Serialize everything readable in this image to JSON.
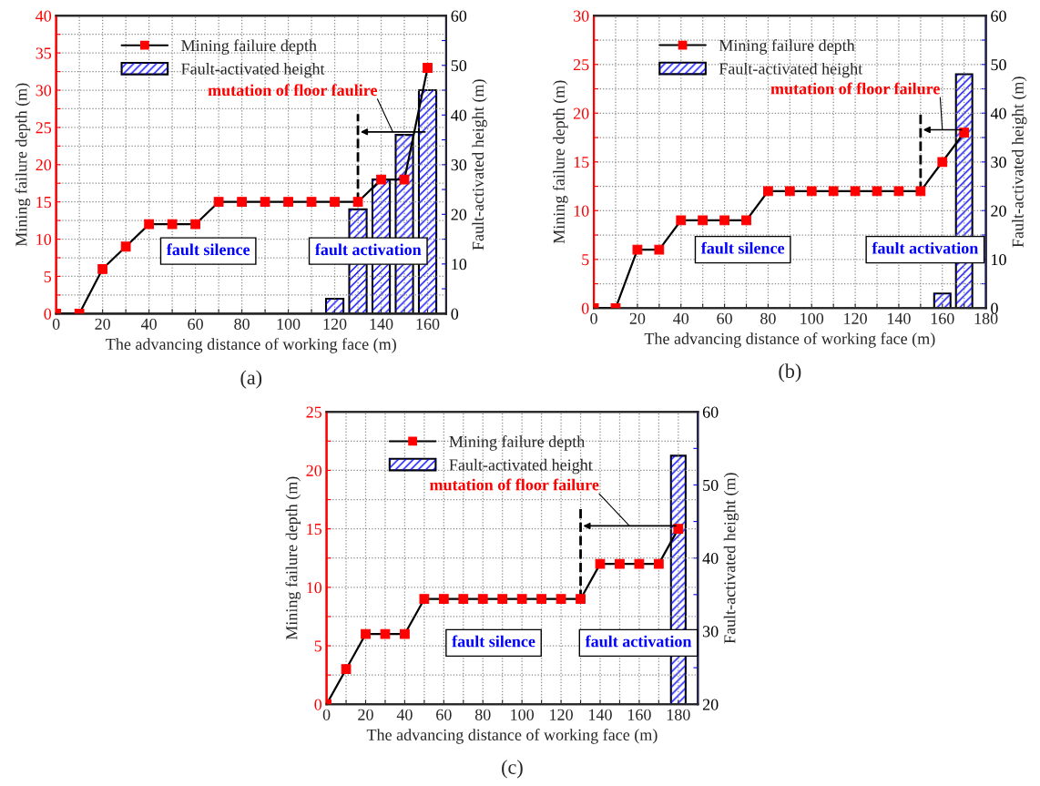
{
  "chart_data": [
    {
      "type": "line",
      "xlabel": "The advancing distance of working face (m)",
      "ylabel": "Mining failure depth (m)",
      "y2label": "Fault-activated height (m)",
      "subtitle": "(a)",
      "xlim": [
        0,
        168
      ],
      "xticks": [
        0,
        {
          "value": 10,
          "label": null
        },
        20,
        {
          "value": 30,
          "label": null
        },
        40,
        {
          "value": 50,
          "label": null
        },
        60,
        {
          "value": 70,
          "label": null
        },
        80,
        {
          "value": 90,
          "label": null
        },
        100,
        {
          "value": 110,
          "label": null
        },
        120,
        {
          "value": 130,
          "label": null
        },
        140,
        {
          "value": 150,
          "label": null
        },
        160
      ],
      "ylim": [
        0,
        40
      ],
      "yticks": [
        0,
        {
          "value": 2.5,
          "label": null
        },
        5,
        {
          "value": 7.5,
          "label": null
        },
        10,
        {
          "value": 12.5,
          "label": null
        },
        15,
        {
          "value": 17.5,
          "label": null
        },
        20,
        {
          "value": 22.5,
          "label": null
        },
        25,
        {
          "value": 27.5,
          "label": null
        },
        30,
        {
          "value": 32.5,
          "label": null
        },
        35,
        {
          "value": 37.5,
          "label": null
        },
        40
      ],
      "y2lim": [
        0,
        60
      ],
      "y2ticks": [
        0,
        {
          "value": 5,
          "label": null
        },
        10,
        {
          "value": 15,
          "label": null
        },
        20,
        {
          "value": 25,
          "label": null
        },
        30,
        {
          "value": 35,
          "label": null
        },
        40,
        {
          "value": 45,
          "label": null
        },
        50,
        {
          "value": 55,
          "label": null
        },
        60
      ],
      "grid": true,
      "legend": "top left",
      "marker": "square",
      "series": [
        {
          "name": "Mining failure depth",
          "color": "#ff0000",
          "x": [
            0,
            10,
            20,
            30,
            40,
            50,
            60,
            70,
            80,
            90,
            100,
            110,
            120,
            130,
            140,
            150,
            160
          ],
          "values": [
            0,
            0,
            6,
            9,
            12,
            12,
            12,
            15,
            15,
            15,
            15,
            15,
            15,
            15,
            18,
            18,
            33
          ]
        },
        {
          "name": "Fault-activated height",
          "type": "bar",
          "axis": "y2",
          "color": "#0000ff",
          "x": [
            120,
            130,
            140,
            150,
            160
          ],
          "values": [
            3,
            21,
            27,
            36,
            45
          ]
        }
      ],
      "ref_lines": [
        {
          "axis": "x",
          "value": 130,
          "line_style": "dashed",
          "color": "#000000"
        }
      ],
      "annotations": [
        "mutation of floor faulire",
        "fault silence",
        "fault activation"
      ]
    },
    {
      "type": "line",
      "xlabel": "The advancing distance of working face (m)",
      "ylabel": "Mining failure depth (m)",
      "y2label": "Fault-activated height (m)",
      "subtitle": "(b)",
      "xlim": [
        0,
        180
      ],
      "xticks": [
        0,
        {
          "value": 10,
          "label": null
        },
        20,
        {
          "value": 30,
          "label": null
        },
        40,
        {
          "value": 50,
          "label": null
        },
        60,
        {
          "value": 70,
          "label": null
        },
        80,
        {
          "value": 90,
          "label": null
        },
        100,
        {
          "value": 110,
          "label": null
        },
        120,
        {
          "value": 130,
          "label": null
        },
        140,
        {
          "value": 150,
          "label": null
        },
        160,
        {
          "value": 170,
          "label": null
        },
        180
      ],
      "ylim": [
        0,
        30
      ],
      "yticks": [
        0,
        {
          "value": 2.5,
          "label": null
        },
        5,
        {
          "value": 7.5,
          "label": null
        },
        10,
        {
          "value": 12.5,
          "label": null
        },
        15,
        {
          "value": 17.5,
          "label": null
        },
        20,
        {
          "value": 22.5,
          "label": null
        },
        25,
        {
          "value": 27.5,
          "label": null
        },
        30
      ],
      "y2lim": [
        0,
        60
      ],
      "y2ticks": [
        0,
        {
          "value": 5,
          "label": null
        },
        10,
        {
          "value": 15,
          "label": null
        },
        20,
        {
          "value": 25,
          "label": null
        },
        30,
        {
          "value": 35,
          "label": null
        },
        40,
        {
          "value": 45,
          "label": null
        },
        50,
        {
          "value": 55,
          "label": null
        },
        60
      ],
      "grid": true,
      "legend": "top left",
      "marker": "square",
      "series": [
        {
          "name": "Mining failure depth",
          "color": "#ff0000",
          "x": [
            0,
            10,
            20,
            30,
            40,
            50,
            60,
            70,
            80,
            90,
            100,
            110,
            120,
            130,
            140,
            150,
            160,
            170
          ],
          "values": [
            0,
            0,
            6,
            6,
            9,
            9,
            9,
            9,
            12,
            12,
            12,
            12,
            12,
            12,
            12,
            12,
            15,
            18
          ]
        },
        {
          "name": "Fault-activated height",
          "type": "bar",
          "axis": "y2",
          "color": "#0000ff",
          "x": [
            160,
            170
          ],
          "values": [
            3,
            48
          ]
        }
      ],
      "ref_lines": [
        {
          "axis": "x",
          "value": 150,
          "line_style": "dashed",
          "color": "#000000"
        }
      ],
      "annotations": [
        "mutation of floor failure",
        "fault silence",
        "fault activation"
      ]
    },
    {
      "type": "line",
      "xlabel": "The advancing distance of working face (m)",
      "ylabel": "Mining failure depth (m)",
      "y2label": "Fault-activated height (m)",
      "subtitle": "(c)",
      "xlim": [
        0,
        190
      ],
      "xticks": [
        0,
        {
          "value": 10,
          "label": null
        },
        20,
        {
          "value": 30,
          "label": null
        },
        40,
        {
          "value": 50,
          "label": null
        },
        60,
        {
          "value": 70,
          "label": null
        },
        80,
        {
          "value": 90,
          "label": null
        },
        100,
        {
          "value": 110,
          "label": null
        },
        120,
        {
          "value": 130,
          "label": null
        },
        140,
        {
          "value": 150,
          "label": null
        },
        160,
        {
          "value": 170,
          "label": null
        },
        180
      ],
      "ylim": [
        0,
        25
      ],
      "yticks": [
        0,
        {
          "value": 2.5,
          "label": null
        },
        5,
        {
          "value": 7.5,
          "label": null
        },
        10,
        {
          "value": 12.5,
          "label": null
        },
        15,
        {
          "value": 17.5,
          "label": null
        },
        20,
        {
          "value": 22.5,
          "label": null
        },
        25
      ],
      "y2lim": [
        20,
        60
      ],
      "y2ticks": [
        20,
        {
          "value": 25,
          "label": null
        },
        30,
        {
          "value": 35,
          "label": null
        },
        40,
        {
          "value": 45,
          "label": null
        },
        50,
        {
          "value": 55,
          "label": null
        },
        60
      ],
      "grid": true,
      "legend": "top left",
      "marker": "square",
      "series": [
        {
          "name": "Mining failure depth",
          "color": "#ff0000",
          "x": [
            0,
            10,
            20,
            30,
            40,
            50,
            60,
            70,
            80,
            90,
            100,
            110,
            120,
            130,
            140,
            150,
            160,
            170,
            180
          ],
          "values": [
            0,
            3,
            6,
            6,
            6,
            9,
            9,
            9,
            9,
            9,
            9,
            9,
            9,
            9,
            12,
            12,
            12,
            12,
            15
          ]
        },
        {
          "name": "Fault-activated height",
          "type": "bar",
          "axis": "y2",
          "color": "#0000ff",
          "x": [
            180
          ],
          "values": [
            54
          ]
        }
      ],
      "ref_lines": [
        {
          "axis": "x",
          "value": 130,
          "line_style": "dashed",
          "color": "#000000"
        }
      ],
      "annotations": [
        "mutation of floor failure",
        "fault silence",
        "fault activation"
      ]
    }
  ]
}
